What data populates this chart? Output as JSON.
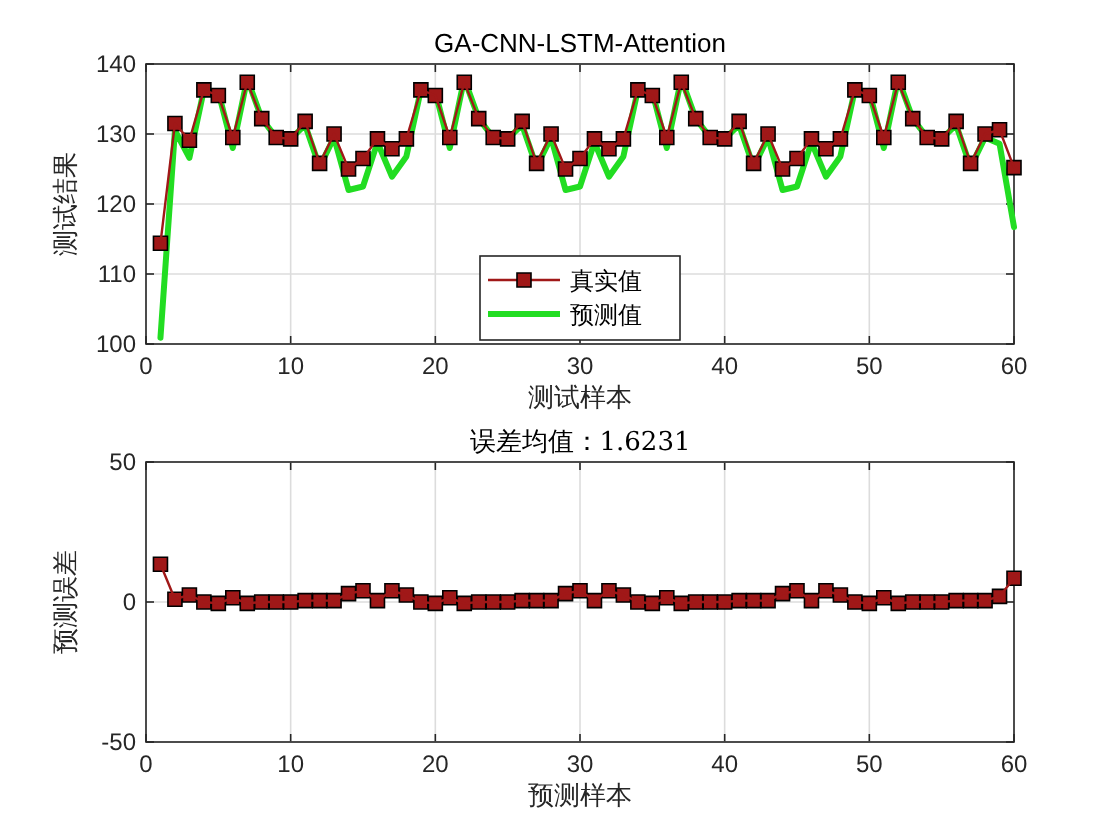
{
  "chart_data": [
    {
      "type": "line",
      "title": "GA-CNN-LSTM-Attention",
      "xlabel": "测试样本",
      "ylabel": "测试结果",
      "x": [
        1,
        2,
        3,
        4,
        5,
        6,
        7,
        8,
        9,
        10,
        11,
        12,
        13,
        14,
        15,
        16,
        17,
        18,
        19,
        20,
        21,
        22,
        23,
        24,
        25,
        26,
        27,
        28,
        29,
        30,
        31,
        32,
        33,
        34,
        35,
        36,
        37,
        38,
        39,
        40,
        41,
        42,
        43,
        44,
        45,
        46,
        47,
        48,
        49,
        50,
        51,
        52,
        53,
        54,
        55,
        56,
        57,
        58,
        59,
        60
      ],
      "xlim": [
        0,
        60
      ],
      "xticks": [
        0,
        10,
        20,
        30,
        40,
        50,
        60
      ],
      "ylim": [
        100,
        140
      ],
      "yticks": [
        100,
        110,
        120,
        130,
        140
      ],
      "grid": true,
      "legend": "bottom",
      "series": [
        {
          "name": "真实值",
          "color": "#a01818",
          "marker": "square",
          "values": [
            114.4,
            131.5,
            129.1,
            136.3,
            135.5,
            129.5,
            137.4,
            132.2,
            129.5,
            129.3,
            131.8,
            125.8,
            130,
            125,
            126.5,
            129.3,
            127.9,
            129.3,
            136.3,
            135.5,
            129.5,
            137.4,
            132.2,
            129.5,
            129.3,
            131.8,
            125.8,
            130,
            125,
            126.5,
            129.3,
            127.9,
            129.3,
            136.3,
            135.5,
            129.5,
            137.4,
            132.2,
            129.5,
            129.3,
            131.8,
            125.8,
            130,
            125,
            126.5,
            129.3,
            127.9,
            129.3,
            136.3,
            135.5,
            129.5,
            137.4,
            132.2,
            129.5,
            129.3,
            131.8,
            125.8,
            130,
            130.6,
            125.2
          ]
        },
        {
          "name": "预测值",
          "color": "#22dd22",
          "marker": "none",
          "values": [
            100.9,
            130.5,
            126.6,
            136.3,
            136.0,
            128.0,
            137.9,
            132.2,
            129.5,
            129.3,
            131.3,
            125.3,
            129.5,
            122.0,
            122.5,
            128.8,
            123.9,
            126.8,
            136.3,
            136.0,
            128.0,
            137.9,
            132.2,
            129.5,
            129.3,
            131.3,
            125.3,
            129.5,
            122.0,
            122.5,
            128.8,
            123.9,
            126.8,
            136.3,
            136.0,
            128.0,
            137.9,
            132.2,
            129.5,
            129.3,
            131.3,
            125.3,
            129.5,
            122.0,
            122.5,
            128.8,
            123.9,
            126.8,
            136.3,
            136.0,
            128.0,
            137.9,
            132.2,
            129.5,
            129.3,
            131.3,
            125.3,
            129.5,
            128.6,
            116.7
          ]
        }
      ]
    },
    {
      "type": "line",
      "title": "误差均值：1.6231",
      "xlabel": "预测样本",
      "ylabel": "预测误差",
      "x": [
        1,
        2,
        3,
        4,
        5,
        6,
        7,
        8,
        9,
        10,
        11,
        12,
        13,
        14,
        15,
        16,
        17,
        18,
        19,
        20,
        21,
        22,
        23,
        24,
        25,
        26,
        27,
        28,
        29,
        30,
        31,
        32,
        33,
        34,
        35,
        36,
        37,
        38,
        39,
        40,
        41,
        42,
        43,
        44,
        45,
        46,
        47,
        48,
        49,
        50,
        51,
        52,
        53,
        54,
        55,
        56,
        57,
        58,
        59,
        60
      ],
      "xlim": [
        0,
        60
      ],
      "xticks": [
        0,
        10,
        20,
        30,
        40,
        50,
        60
      ],
      "ylim": [
        -50,
        50
      ],
      "yticks": [
        -50,
        0,
        50
      ],
      "grid": true,
      "series": [
        {
          "color": "#a01818",
          "marker": "square",
          "values": [
            13.5,
            1,
            2.5,
            0,
            -0.5,
            1.5,
            -0.5,
            0,
            0,
            0,
            0.5,
            0.5,
            0.5,
            3,
            4,
            0.5,
            4,
            2.5,
            0,
            -0.5,
            1.5,
            -0.5,
            0,
            0,
            0,
            0.5,
            0.5,
            0.5,
            3,
            4,
            0.5,
            4,
            2.5,
            0,
            -0.5,
            1.5,
            -0.5,
            0,
            0,
            0,
            0.5,
            0.5,
            0.5,
            3,
            4,
            0.5,
            4,
            2.5,
            0,
            -0.5,
            1.5,
            -0.5,
            0,
            0,
            0,
            0.5,
            0.5,
            0.5,
            2,
            8.5
          ]
        }
      ]
    }
  ]
}
